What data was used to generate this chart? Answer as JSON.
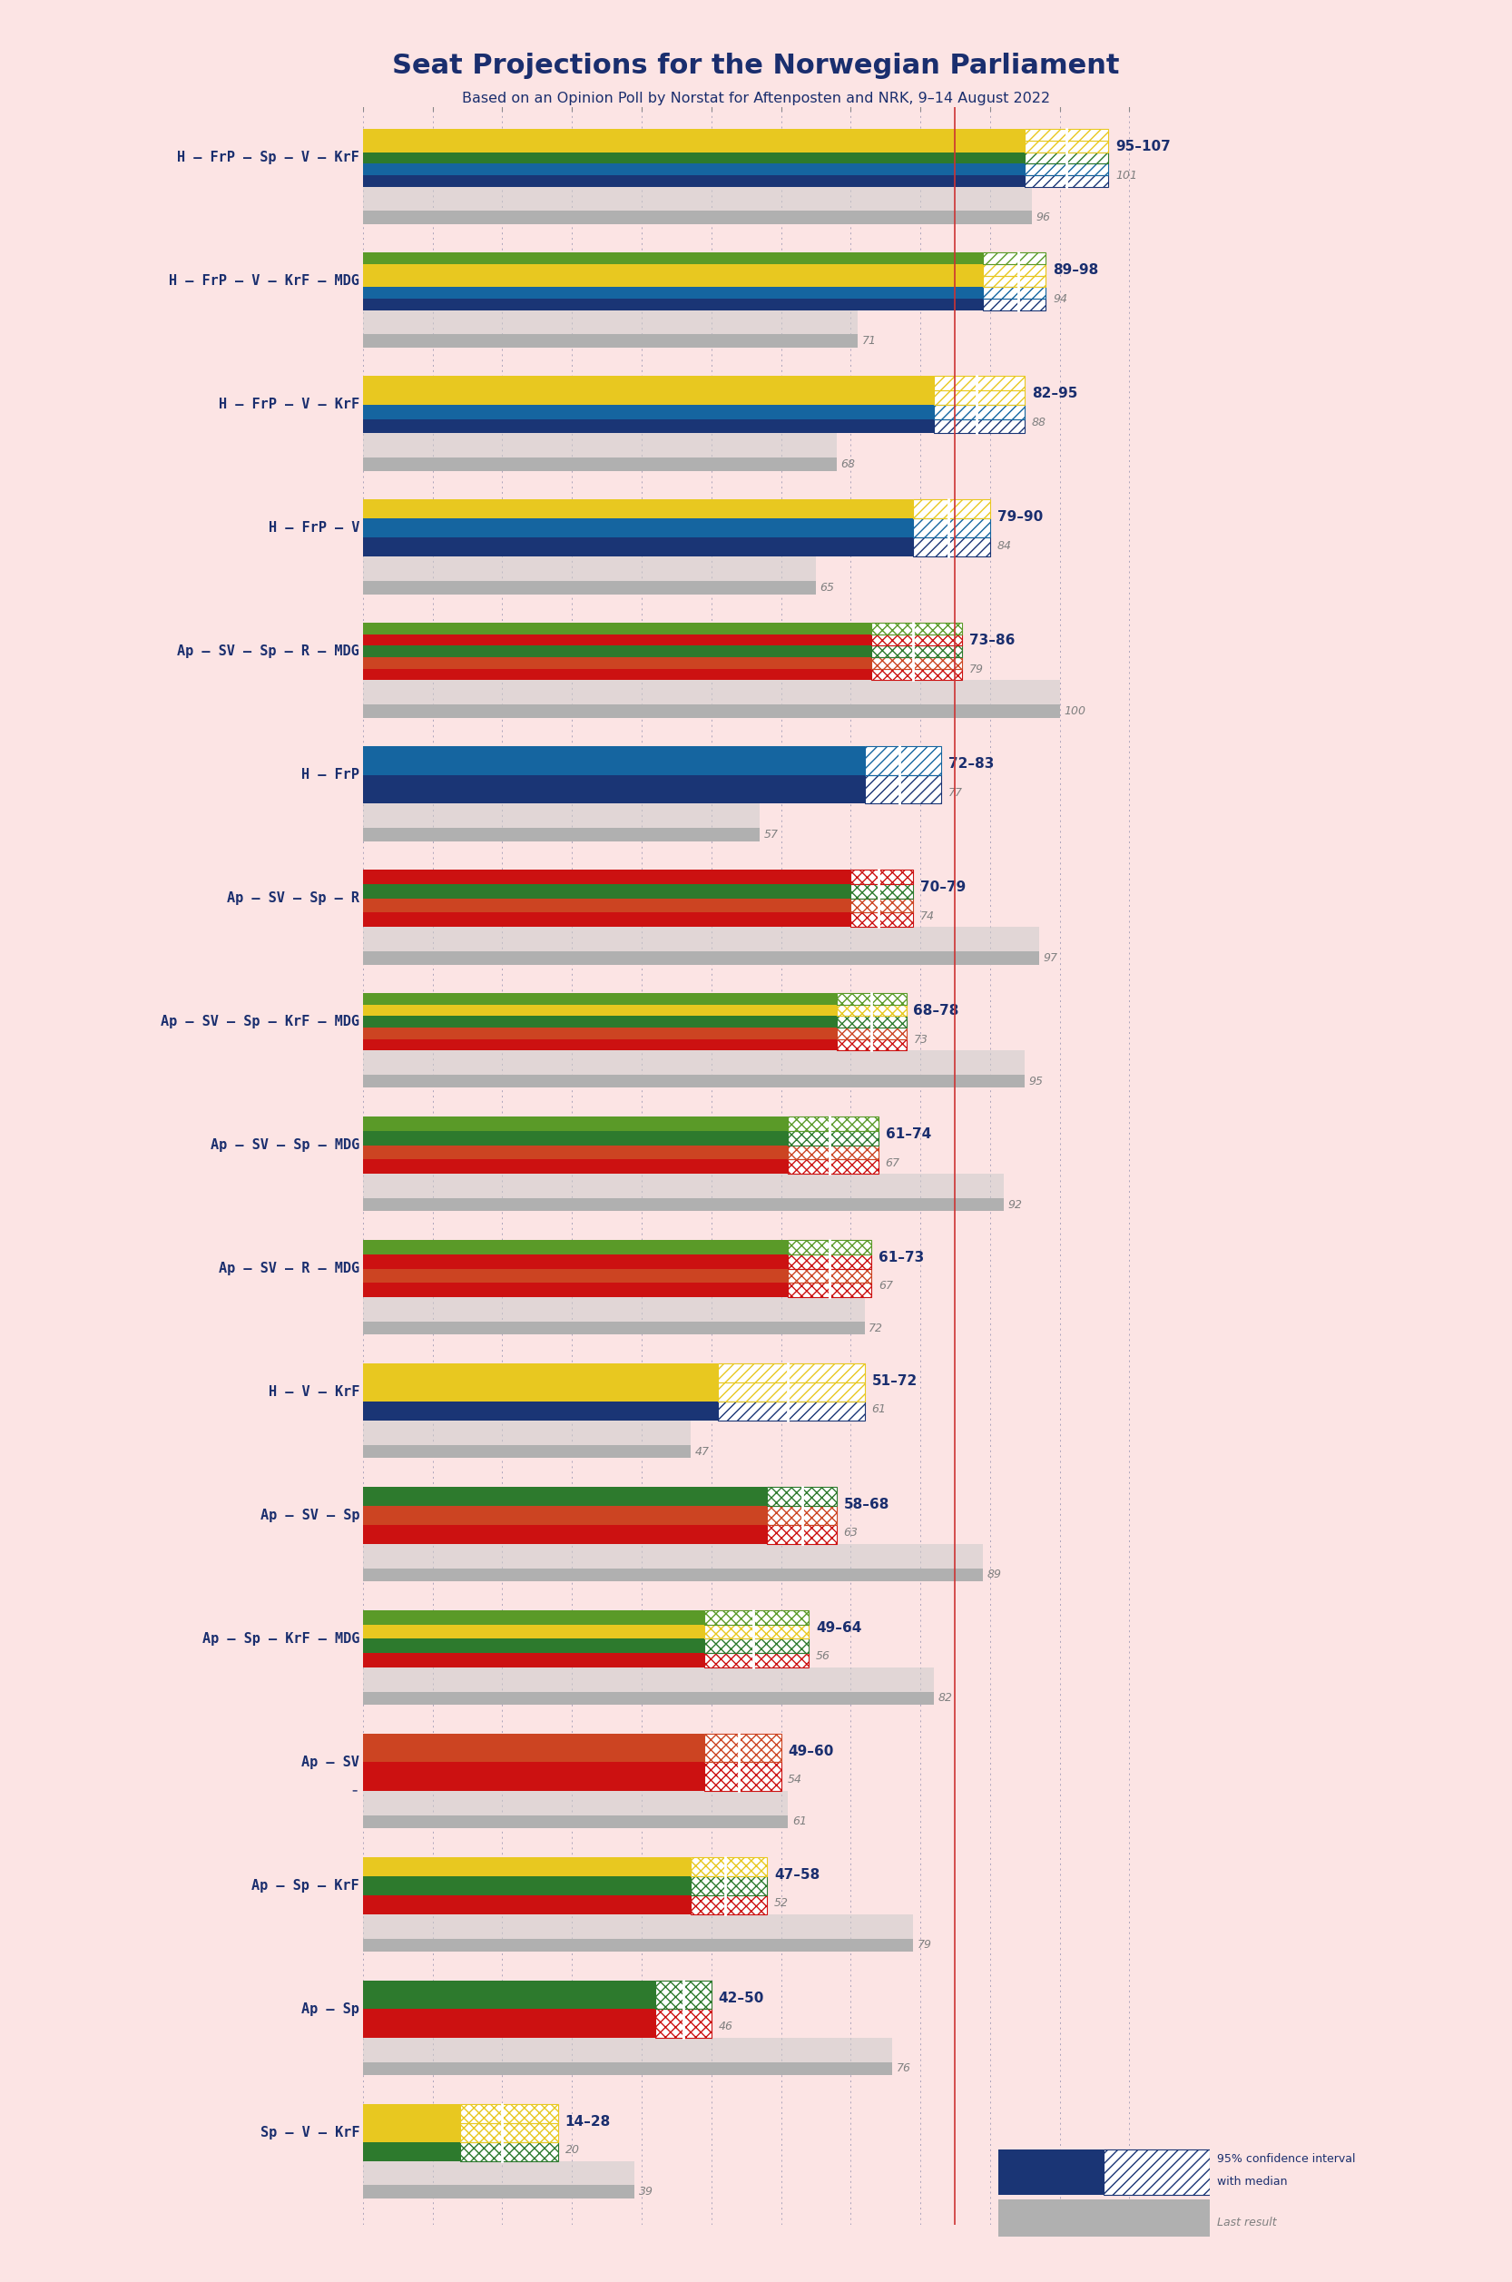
{
  "title": "Seat Projections for the Norwegian Parliament",
  "subtitle": "Based on an Opinion Poll by Norstat for Aftenposten and NRK, 9–14 August 2022",
  "bg": "#fce4e4",
  "title_color": "#1a2e6e",
  "majority_line": 85,
  "xmax": 115,
  "grid_ticks": [
    0,
    10,
    20,
    30,
    40,
    50,
    60,
    70,
    80,
    90,
    100,
    110
  ],
  "coalitions": [
    {
      "name": "H – FrP – Sp – V – KrF",
      "min": 95,
      "max": 107,
      "median": 101,
      "last": 96,
      "parties": [
        "H",
        "FrP",
        "Sp",
        "V",
        "KrF"
      ],
      "ul": false
    },
    {
      "name": "H – FrP – V – KrF – MDG",
      "min": 89,
      "max": 98,
      "median": 94,
      "last": 71,
      "parties": [
        "H",
        "FrP",
        "V",
        "KrF",
        "MDG"
      ],
      "ul": false
    },
    {
      "name": "H – FrP – V – KrF",
      "min": 82,
      "max": 95,
      "median": 88,
      "last": 68,
      "parties": [
        "H",
        "FrP",
        "V",
        "KrF"
      ],
      "ul": false
    },
    {
      "name": "H – FrP – V",
      "min": 79,
      "max": 90,
      "median": 84,
      "last": 65,
      "parties": [
        "H",
        "FrP",
        "V"
      ],
      "ul": false
    },
    {
      "name": "Ap – SV – Sp – R – MDG",
      "min": 73,
      "max": 86,
      "median": 79,
      "last": 100,
      "parties": [
        "Ap",
        "SV",
        "Sp",
        "R",
        "MDG"
      ],
      "ul": false
    },
    {
      "name": "H – FrP",
      "min": 72,
      "max": 83,
      "median": 77,
      "last": 57,
      "parties": [
        "H",
        "FrP"
      ],
      "ul": false
    },
    {
      "name": "Ap – SV – Sp – R",
      "min": 70,
      "max": 79,
      "median": 74,
      "last": 97,
      "parties": [
        "Ap",
        "SV",
        "Sp",
        "R"
      ],
      "ul": false
    },
    {
      "name": "Ap – SV – Sp – KrF – MDG",
      "min": 68,
      "max": 78,
      "median": 73,
      "last": 95,
      "parties": [
        "Ap",
        "SV",
        "Sp",
        "KrF",
        "MDG"
      ],
      "ul": false
    },
    {
      "name": "Ap – SV – Sp – MDG",
      "min": 61,
      "max": 74,
      "median": 67,
      "last": 92,
      "parties": [
        "Ap",
        "SV",
        "Sp",
        "MDG"
      ],
      "ul": false
    },
    {
      "name": "Ap – SV – R – MDG",
      "min": 61,
      "max": 73,
      "median": 67,
      "last": 72,
      "parties": [
        "Ap",
        "SV",
        "R",
        "MDG"
      ],
      "ul": false
    },
    {
      "name": "H – V – KrF",
      "min": 51,
      "max": 72,
      "median": 61,
      "last": 47,
      "parties": [
        "H",
        "V",
        "KrF"
      ],
      "ul": false
    },
    {
      "name": "Ap – SV – Sp",
      "min": 58,
      "max": 68,
      "median": 63,
      "last": 89,
      "parties": [
        "Ap",
        "SV",
        "Sp"
      ],
      "ul": false
    },
    {
      "name": "Ap – Sp – KrF – MDG",
      "min": 49,
      "max": 64,
      "median": 56,
      "last": 82,
      "parties": [
        "Ap",
        "Sp",
        "KrF",
        "MDG"
      ],
      "ul": false
    },
    {
      "name": "Ap – SV",
      "min": 49,
      "max": 60,
      "median": 54,
      "last": 61,
      "parties": [
        "Ap",
        "SV"
      ],
      "ul": true
    },
    {
      "name": "Ap – Sp – KrF",
      "min": 47,
      "max": 58,
      "median": 52,
      "last": 79,
      "parties": [
        "Ap",
        "Sp",
        "KrF"
      ],
      "ul": false
    },
    {
      "name": "Ap – Sp",
      "min": 42,
      "max": 50,
      "median": 46,
      "last": 76,
      "parties": [
        "Ap",
        "Sp"
      ],
      "ul": false
    },
    {
      "name": "Sp – V – KrF",
      "min": 14,
      "max": 28,
      "median": 20,
      "last": 39,
      "parties": [
        "Sp",
        "V",
        "KrF"
      ],
      "ul": false
    }
  ],
  "pc": {
    "H": "#1a3575",
    "FrP": "#1565a0",
    "Sp": "#2d7a2d",
    "V": "#e8c820",
    "KrF": "#e8c820",
    "MDG": "#5a9a28",
    "Ap": "#cc1111",
    "SV": "#cc4422",
    "R": "#cc1111"
  },
  "ci_bar_bg": "#cccccc",
  "last_bar_color": "#b0b0b0",
  "majority_color": "#cc3333",
  "grid_color": "#8888aa",
  "label_color": "#1a2e6e"
}
